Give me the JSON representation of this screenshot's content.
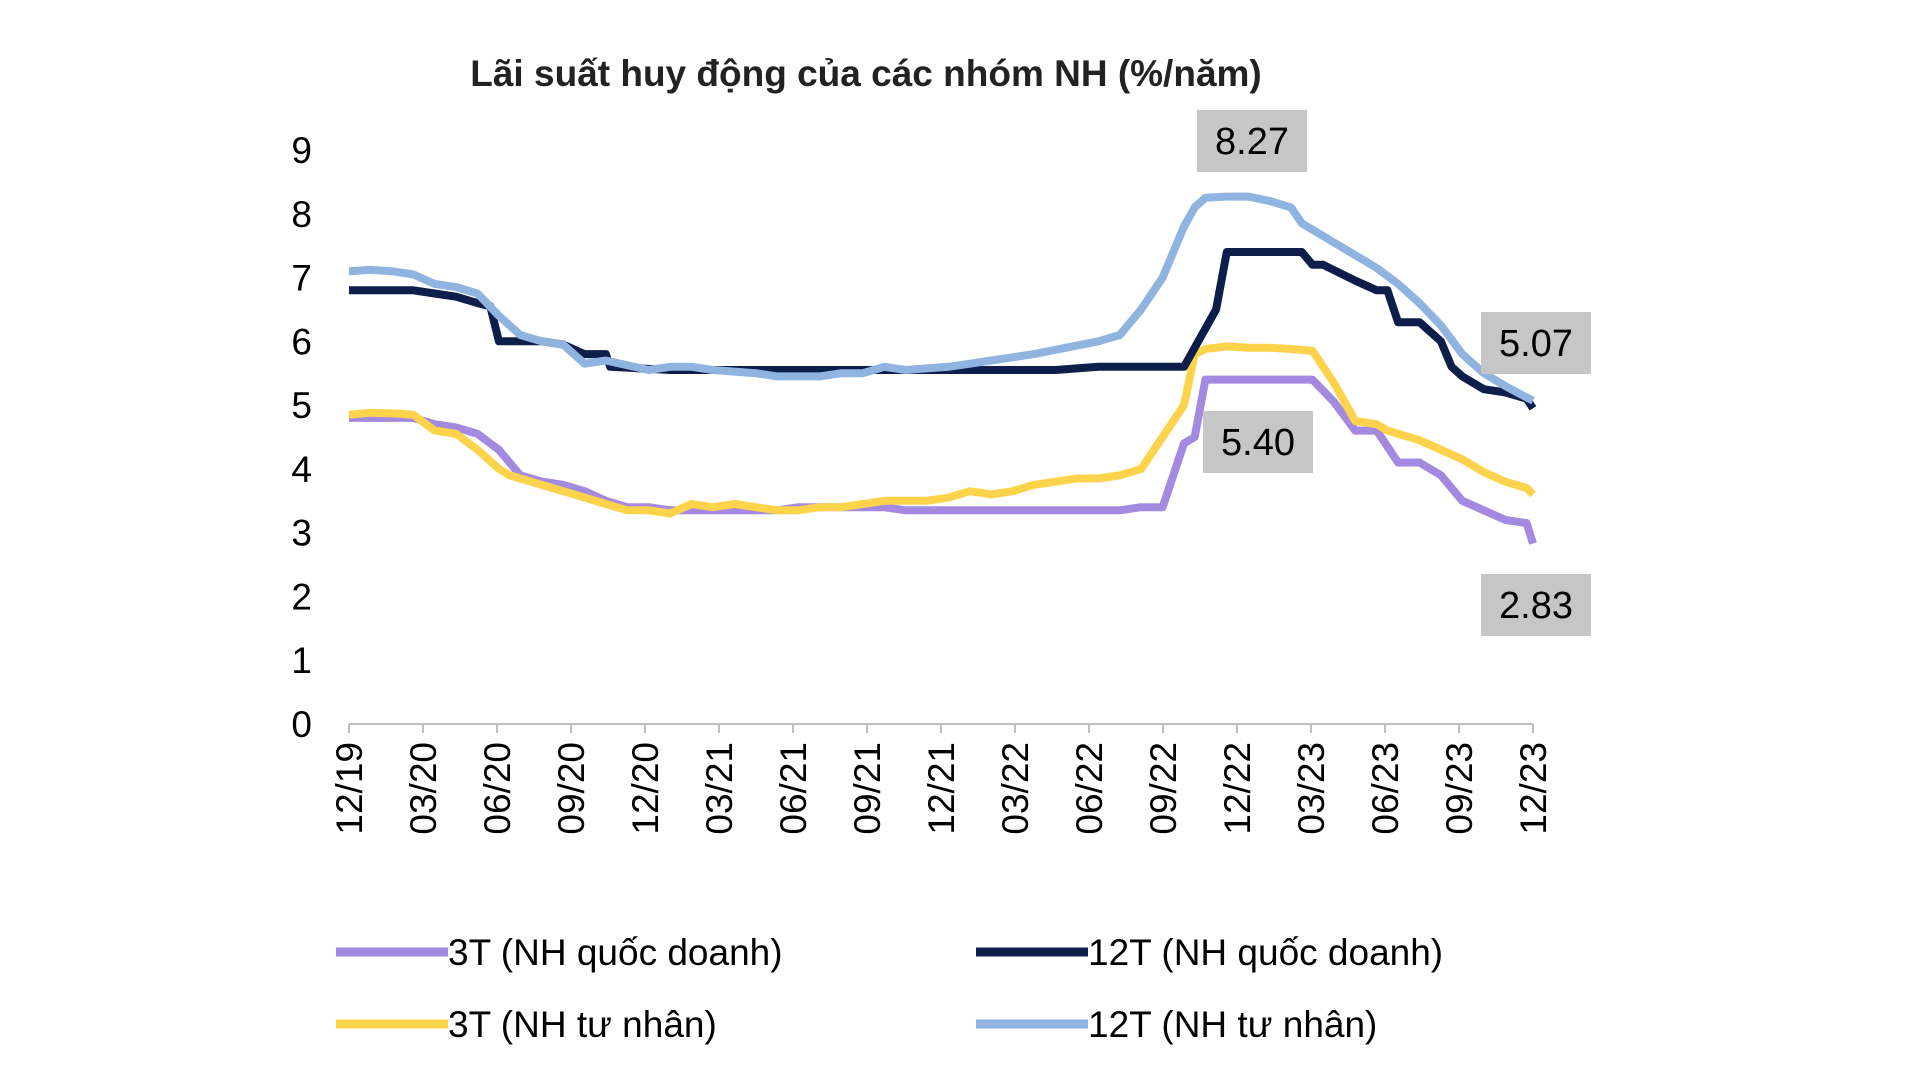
{
  "chart_data": {
    "type": "line",
    "title": "Lãi suất huy động của các nhóm NH (%/năm)",
    "xlabel": "",
    "ylabel": "",
    "ylim": [
      0,
      9
    ],
    "yticks": [
      "0",
      "1",
      "2",
      "3",
      "4",
      "5",
      "6",
      "7",
      "8",
      "9"
    ],
    "grid": false,
    "x_start": "12/19",
    "x_end": "12/23",
    "xticks": [
      "12/19",
      "03/20",
      "06/20",
      "09/20",
      "12/20",
      "03/21",
      "06/21",
      "09/21",
      "12/21",
      "03/22",
      "06/22",
      "09/22",
      "12/22",
      "03/23",
      "06/23",
      "09/23",
      "12/23"
    ],
    "legend_position": "bottom",
    "series": [
      {
        "name": "12T (NH quốc doanh)",
        "color": "#0e1e4a",
        "points": [
          [
            0,
            6.8
          ],
          [
            3,
            6.8
          ],
          [
            4,
            6.75
          ],
          [
            5,
            6.7
          ],
          [
            6,
            6.6
          ],
          [
            6.6,
            6.55
          ],
          [
            7,
            6.0
          ],
          [
            9,
            6.0
          ],
          [
            10,
            5.95
          ],
          [
            11,
            5.8
          ],
          [
            12,
            5.8
          ],
          [
            12.2,
            5.6
          ],
          [
            15,
            5.55
          ],
          [
            21,
            5.55
          ],
          [
            23,
            5.55
          ],
          [
            33,
            5.55
          ],
          [
            35,
            5.6
          ],
          [
            39,
            5.6
          ],
          [
            40.5,
            6.5
          ],
          [
            41,
            7.4
          ],
          [
            44.5,
            7.4
          ],
          [
            45,
            7.2
          ],
          [
            45.5,
            7.2
          ],
          [
            47,
            6.95
          ],
          [
            48,
            6.8
          ],
          [
            48.5,
            6.8
          ],
          [
            49,
            6.3
          ],
          [
            50,
            6.3
          ],
          [
            51,
            6.0
          ],
          [
            51.5,
            5.6
          ],
          [
            52,
            5.45
          ],
          [
            53,
            5.25
          ],
          [
            54,
            5.2
          ],
          [
            55,
            5.1
          ],
          [
            55.3,
            4.95
          ]
        ]
      },
      {
        "name": "12T (NH tư nhân)",
        "color": "#8fb4e0",
        "points": [
          [
            0,
            7.1
          ],
          [
            1,
            7.12
          ],
          [
            2,
            7.1
          ],
          [
            3,
            7.05
          ],
          [
            4,
            6.9
          ],
          [
            5,
            6.85
          ],
          [
            6,
            6.75
          ],
          [
            7,
            6.4
          ],
          [
            8,
            6.1
          ],
          [
            9,
            6.0
          ],
          [
            10,
            5.95
          ],
          [
            11,
            5.65
          ],
          [
            12,
            5.7
          ],
          [
            14,
            5.55
          ],
          [
            15,
            5.6
          ],
          [
            16,
            5.6
          ],
          [
            17,
            5.55
          ],
          [
            19,
            5.5
          ],
          [
            20,
            5.45
          ],
          [
            21,
            5.45
          ],
          [
            22,
            5.45
          ],
          [
            23,
            5.5
          ],
          [
            24,
            5.5
          ],
          [
            25,
            5.6
          ],
          [
            26,
            5.55
          ],
          [
            28,
            5.6
          ],
          [
            29,
            5.65
          ],
          [
            30,
            5.7
          ],
          [
            31,
            5.75
          ],
          [
            32,
            5.8
          ],
          [
            35,
            6.0
          ],
          [
            36,
            6.1
          ],
          [
            37,
            6.5
          ],
          [
            38,
            7.0
          ],
          [
            39,
            7.8
          ],
          [
            39.5,
            8.1
          ],
          [
            40,
            8.25
          ],
          [
            41,
            8.27
          ],
          [
            42,
            8.27
          ],
          [
            43,
            8.2
          ],
          [
            44,
            8.1
          ],
          [
            44.5,
            7.85
          ],
          [
            45,
            7.75
          ],
          [
            46,
            7.55
          ],
          [
            47,
            7.35
          ],
          [
            48,
            7.15
          ],
          [
            49,
            6.9
          ],
          [
            50,
            6.6
          ],
          [
            51,
            6.25
          ],
          [
            52,
            5.8
          ],
          [
            53,
            5.5
          ],
          [
            54,
            5.3
          ],
          [
            55,
            5.12
          ],
          [
            55.3,
            5.07
          ]
        ]
      },
      {
        "name": "3T (NH quốc doanh)",
        "color": "#a389e0",
        "points": [
          [
            0,
            4.8
          ],
          [
            3,
            4.8
          ],
          [
            4,
            4.7
          ],
          [
            5,
            4.65
          ],
          [
            6,
            4.55
          ],
          [
            7,
            4.3
          ],
          [
            8,
            3.9
          ],
          [
            9,
            3.8
          ],
          [
            10,
            3.75
          ],
          [
            11,
            3.65
          ],
          [
            12,
            3.5
          ],
          [
            13,
            3.4
          ],
          [
            14,
            3.4
          ],
          [
            15,
            3.35
          ],
          [
            16,
            3.35
          ],
          [
            20,
            3.35
          ],
          [
            21,
            3.4
          ],
          [
            25,
            3.4
          ],
          [
            26,
            3.35
          ],
          [
            36,
            3.35
          ],
          [
            37,
            3.4
          ],
          [
            38,
            3.4
          ],
          [
            39,
            4.4
          ],
          [
            39.5,
            4.5
          ],
          [
            40,
            5.4
          ],
          [
            45,
            5.4
          ],
          [
            46,
            5.05
          ],
          [
            47,
            4.6
          ],
          [
            48,
            4.6
          ],
          [
            49,
            4.1
          ],
          [
            50,
            4.1
          ],
          [
            51,
            3.9
          ],
          [
            52,
            3.5
          ],
          [
            53,
            3.35
          ],
          [
            54,
            3.2
          ],
          [
            55,
            3.15
          ],
          [
            55.3,
            2.83
          ]
        ]
      },
      {
        "name": "3T (NH tư nhân)",
        "color": "#fcd34b",
        "points": [
          [
            0,
            4.85
          ],
          [
            1,
            4.88
          ],
          [
            2,
            4.87
          ],
          [
            3,
            4.85
          ],
          [
            4,
            4.6
          ],
          [
            5,
            4.55
          ],
          [
            6,
            4.3
          ],
          [
            7,
            4.0
          ],
          [
            7.5,
            3.9
          ],
          [
            8,
            3.85
          ],
          [
            9,
            3.75
          ],
          [
            10,
            3.65
          ],
          [
            11,
            3.55
          ],
          [
            12,
            3.45
          ],
          [
            13,
            3.35
          ],
          [
            14,
            3.35
          ],
          [
            15,
            3.3
          ],
          [
            16,
            3.45
          ],
          [
            17,
            3.4
          ],
          [
            18,
            3.45
          ],
          [
            19,
            3.4
          ],
          [
            20,
            3.35
          ],
          [
            21,
            3.35
          ],
          [
            22,
            3.4
          ],
          [
            23,
            3.4
          ],
          [
            24,
            3.45
          ],
          [
            25,
            3.5
          ],
          [
            26,
            3.5
          ],
          [
            27,
            3.5
          ],
          [
            28,
            3.55
          ],
          [
            29,
            3.65
          ],
          [
            30,
            3.6
          ],
          [
            31,
            3.65
          ],
          [
            32,
            3.75
          ],
          [
            34,
            3.85
          ],
          [
            35,
            3.85
          ],
          [
            36,
            3.9
          ],
          [
            37,
            4.0
          ],
          [
            38,
            4.5
          ],
          [
            39,
            5.0
          ],
          [
            39.5,
            5.8
          ],
          [
            40,
            5.88
          ],
          [
            41,
            5.92
          ],
          [
            42,
            5.9
          ],
          [
            43,
            5.9
          ],
          [
            44,
            5.88
          ],
          [
            45,
            5.85
          ],
          [
            46,
            5.35
          ],
          [
            47,
            4.75
          ],
          [
            48,
            4.7
          ],
          [
            48.5,
            4.6
          ],
          [
            49,
            4.55
          ],
          [
            50,
            4.45
          ],
          [
            51,
            4.3
          ],
          [
            52,
            4.15
          ],
          [
            53,
            3.95
          ],
          [
            54,
            3.8
          ],
          [
            55,
            3.7
          ],
          [
            55.3,
            3.6
          ]
        ]
      }
    ],
    "annotations": [
      {
        "text": "8.27",
        "series": "12T (NH tư nhân)",
        "x_month": 42.2,
        "y": 8.27,
        "placement": "above"
      },
      {
        "text": "5.07",
        "series": "12T (NH tư nhân)",
        "x_month": 55.3,
        "y": 5.07,
        "placement": "above-left"
      },
      {
        "text": "5.40",
        "series": "3T (NH quốc doanh)",
        "x_month": 42.5,
        "y": 5.4,
        "placement": "below"
      },
      {
        "text": "2.83",
        "series": "3T (NH quốc doanh)",
        "x_month": 55.3,
        "y": 2.83,
        "placement": "below-left"
      }
    ],
    "legend_order": [
      "3T (NH quốc doanh)",
      "12T (NH quốc doanh)",
      "3T (NH tư nhân)",
      "12T (NH tư nhân)"
    ]
  }
}
